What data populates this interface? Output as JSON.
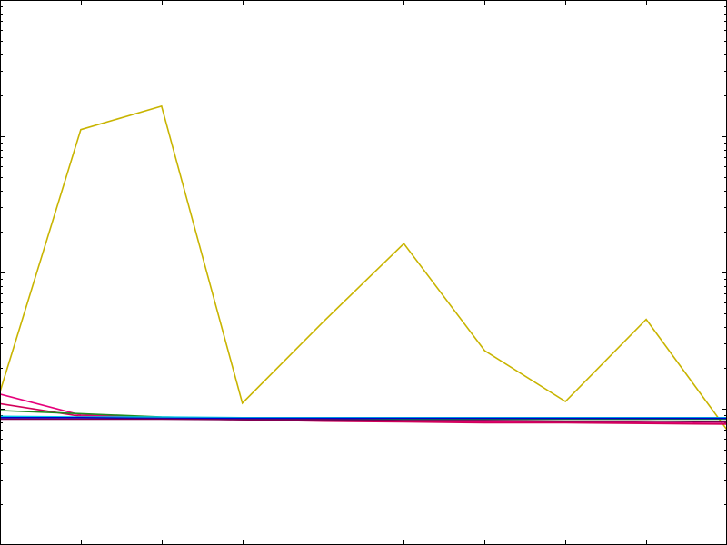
{
  "chart_data": {
    "type": "line",
    "title": "",
    "xlabel": "",
    "ylabel": "",
    "x": [
      0,
      1,
      2,
      3,
      4,
      5,
      6,
      7,
      8,
      9
    ],
    "xlim": [
      0,
      9
    ],
    "yscale": "log",
    "ylim": [
      0.1,
      1000
    ],
    "grid": false,
    "legend": "none",
    "series": [
      {
        "color": "#c8b400",
        "values": [
          1.33,
          111.8,
          166.2,
          1.1,
          4.34,
          16.3,
          2.67,
          1.13,
          4.53,
          0.7
        ]
      },
      {
        "color": "#e6007a",
        "values": [
          1.28,
          0.9,
          0.86,
          0.84,
          0.82,
          0.81,
          0.8,
          0.8,
          0.79,
          0.78
        ]
      },
      {
        "color": "#d2005a",
        "values": [
          1.09,
          0.88,
          0.85,
          0.83,
          0.81,
          0.8,
          0.79,
          0.79,
          0.78,
          0.77
        ]
      },
      {
        "color": "#1e8c1e",
        "values": [
          0.97,
          0.92,
          0.87,
          0.85,
          0.84,
          0.84,
          0.84,
          0.84,
          0.84,
          0.84
        ]
      },
      {
        "color": "#00c8e6",
        "values": [
          0.88,
          0.87,
          0.87,
          0.86,
          0.86,
          0.86,
          0.86,
          0.86,
          0.86,
          0.86
        ]
      },
      {
        "color": "#0000c8",
        "values": [
          0.86,
          0.86,
          0.85,
          0.85,
          0.85,
          0.85,
          0.85,
          0.85,
          0.85,
          0.85
        ]
      },
      {
        "color": "#7a0050",
        "values": [
          0.84,
          0.84,
          0.84,
          0.83,
          0.83,
          0.82,
          0.82,
          0.81,
          0.81,
          0.8
        ]
      }
    ]
  }
}
